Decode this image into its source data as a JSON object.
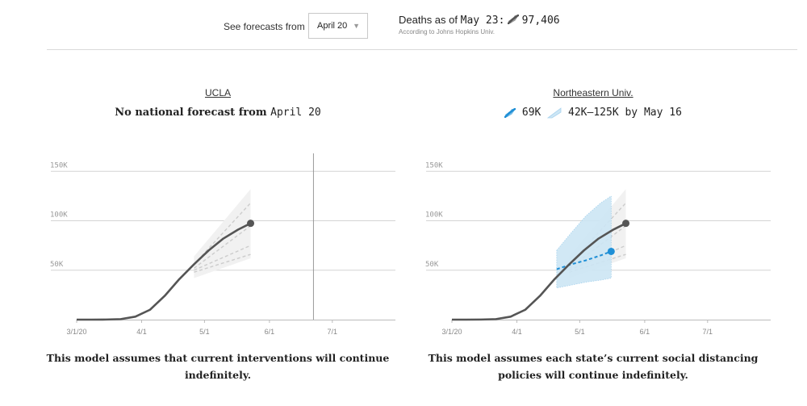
{
  "header": {
    "see_forecasts_label": "See forecasts from",
    "forecast_date": "April 20",
    "deaths_prefix": "Deaths as of",
    "deaths_date": "May 23:",
    "deaths_value": "97,406",
    "deaths_source": "According to Johns Hopkins Univ."
  },
  "panels": [
    {
      "model": "UCLA",
      "subtitle_text": "No national forecast from",
      "subtitle_date": "April 20",
      "caption_line1": "This model assumes that current interventions will continue",
      "caption_line2": "indefinitely."
    },
    {
      "model": "Northeastern Univ.",
      "legend_median": "69K",
      "legend_range": "42K–125K",
      "legend_by": "by May 16",
      "caption_line1": "This model assumes each state’s current social distancing",
      "caption_line2": "policies will continue indefinitely."
    }
  ],
  "colors": {
    "observed": "#555555",
    "forecast": "#1f8fd6",
    "band": "#cde6f5",
    "ghost": "#cccccc",
    "grid": "#d4d4d4"
  },
  "chart_data": [
    {
      "type": "line",
      "title": "UCLA",
      "x_ticks": [
        "3/1/20",
        "4/1",
        "5/1",
        "6/1",
        "7/1"
      ],
      "y_ticks": [
        "50K",
        "100K",
        "150K"
      ],
      "ylim": [
        0,
        160000
      ],
      "observed": {
        "x": [
          "2020-03-01",
          "2020-03-08",
          "2020-03-15",
          "2020-03-22",
          "2020-03-29",
          "2020-04-05",
          "2020-04-12",
          "2020-04-19",
          "2020-04-26",
          "2020-05-03",
          "2020-05-10",
          "2020-05-17",
          "2020-05-23"
        ],
        "y": [
          0,
          0,
          100,
          500,
          3000,
          10000,
          24000,
          41000,
          56000,
          70000,
          82000,
          91000,
          97406
        ]
      },
      "vertical_line": "2020-06-22",
      "forecast": null,
      "ghost_forecasts": [
        {
          "x": [
            "2020-04-26",
            "2020-05-23"
          ],
          "y": [
            56000,
            118000
          ]
        },
        {
          "x": [
            "2020-04-26",
            "2020-05-23"
          ],
          "y": [
            52000,
            95000
          ]
        },
        {
          "x": [
            "2020-04-26",
            "2020-05-23"
          ],
          "y": [
            50000,
            75000
          ]
        },
        {
          "x": [
            "2020-04-26",
            "2020-05-23"
          ],
          "y": [
            48000,
            66000
          ]
        }
      ]
    },
    {
      "type": "line",
      "title": "Northeastern Univ.",
      "x_ticks": [
        "3/1/20",
        "4/1",
        "5/1",
        "6/1",
        "7/1"
      ],
      "y_ticks": [
        "50K",
        "100K",
        "150K"
      ],
      "ylim": [
        0,
        160000
      ],
      "observed": {
        "x": [
          "2020-03-01",
          "2020-03-08",
          "2020-03-15",
          "2020-03-22",
          "2020-03-29",
          "2020-04-05",
          "2020-04-12",
          "2020-04-19",
          "2020-04-26",
          "2020-05-03",
          "2020-05-10",
          "2020-05-17",
          "2020-05-23"
        ],
        "y": [
          0,
          0,
          100,
          500,
          3000,
          10000,
          24000,
          41000,
          56000,
          70000,
          82000,
          91000,
          97406
        ]
      },
      "forecast": {
        "x": [
          "2020-04-20",
          "2020-04-27",
          "2020-05-04",
          "2020-05-11",
          "2020-05-16"
        ],
        "y": [
          51000,
          56000,
          60000,
          65000,
          69000
        ],
        "lower": [
          32000,
          35000,
          38000,
          40000,
          42000
        ],
        "upper": [
          70000,
          88000,
          105000,
          118000,
          125000
        ]
      },
      "ghost_forecasts": [
        {
          "x": [
            "2020-04-26",
            "2020-05-23"
          ],
          "y": [
            56000,
            118000
          ]
        },
        {
          "x": [
            "2020-04-26",
            "2020-05-23"
          ],
          "y": [
            52000,
            95000
          ]
        },
        {
          "x": [
            "2020-04-26",
            "2020-05-23"
          ],
          "y": [
            50000,
            75000
          ]
        },
        {
          "x": [
            "2020-04-26",
            "2020-05-23"
          ],
          "y": [
            48000,
            66000
          ]
        }
      ]
    }
  ]
}
